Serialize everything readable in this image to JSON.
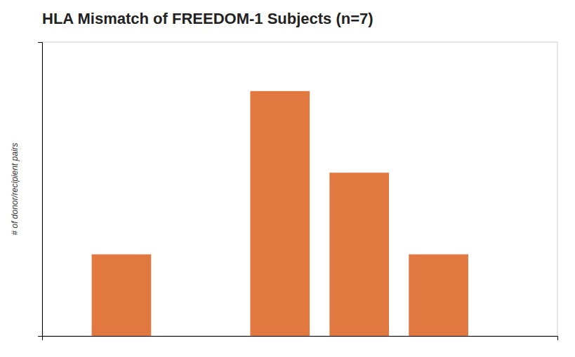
{
  "chart_data": {
    "type": "bar",
    "title": "HLA Mismatch of FREEDOM-1 Subjects (n=7)",
    "y_label": "# of donor/recipient pairs",
    "x": [
      1,
      3,
      4,
      5
    ],
    "values": [
      1,
      3,
      2,
      1
    ],
    "color": "#e07840",
    "xlim": [
      0.0,
      6.5
    ],
    "ylim": [
      0,
      3.6
    ],
    "tick_labels": false,
    "grid": false
  }
}
